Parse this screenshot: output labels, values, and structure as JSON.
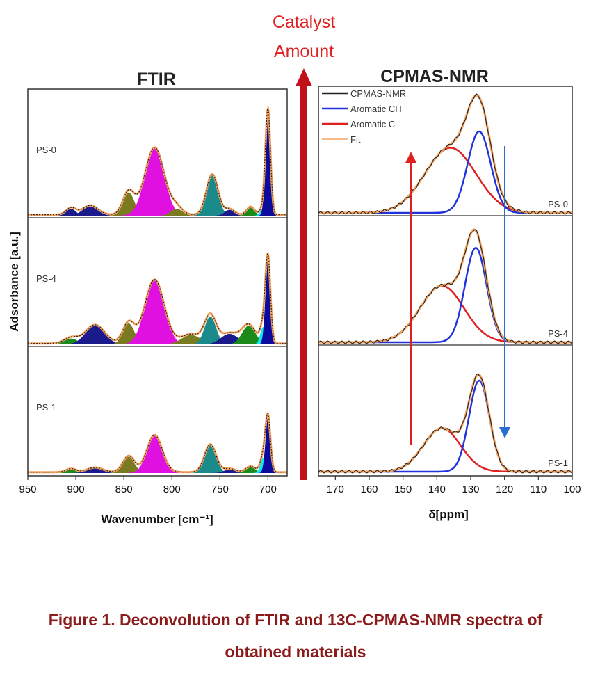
{
  "chart_data": [
    {
      "type": "line",
      "subtype": "stacked deconvoluted spectra",
      "title": "FTIR",
      "xlabel": "Wavenumber [cm⁻¹]",
      "ylabel": "Adsorbance [a.u.]",
      "xlim": [
        950,
        680
      ],
      "xticks": [
        950,
        900,
        850,
        800,
        750,
        700
      ],
      "samples": [
        {
          "name": "PS-0",
          "peaks": [
            {
              "center": 905,
              "width": 5,
              "height": 0.06,
              "color": "#1a1a8c"
            },
            {
              "center": 885,
              "width": 8,
              "height": 0.08,
              "color": "#1a1a8c"
            },
            {
              "center": 845,
              "width": 6,
              "height": 0.2,
              "color": "#7a7a20"
            },
            {
              "center": 818,
              "width": 10,
              "height": 0.58,
              "color": "#e010e0"
            },
            {
              "center": 795,
              "width": 6,
              "height": 0.06,
              "color": "#7a7a20"
            },
            {
              "center": 758,
              "width": 6,
              "height": 0.35,
              "color": "#1a8a8a"
            },
            {
              "center": 740,
              "width": 5,
              "height": 0.05,
              "color": "#1a1a8c"
            },
            {
              "center": 718,
              "width": 4,
              "height": 0.07,
              "color": "#1a8a1a"
            },
            {
              "center": 705,
              "width": 3,
              "height": 0.06,
              "color": "#10e8f0"
            },
            {
              "center": 700,
              "width": 2.6,
              "height": 0.9,
              "color": "#0a0a9c"
            }
          ]
        },
        {
          "name": "PS-4",
          "peaks": [
            {
              "center": 905,
              "width": 7,
              "height": 0.05,
              "color": "#1a8a1a"
            },
            {
              "center": 880,
              "width": 10,
              "height": 0.16,
              "color": "#1a1a8c"
            },
            {
              "center": 845,
              "width": 6,
              "height": 0.18,
              "color": "#7a7a20"
            },
            {
              "center": 818,
              "width": 10,
              "height": 0.55,
              "color": "#e010e0"
            },
            {
              "center": 780,
              "width": 10,
              "height": 0.08,
              "color": "#7a7a20"
            },
            {
              "center": 760,
              "width": 6,
              "height": 0.24,
              "color": "#1a8a8a"
            },
            {
              "center": 740,
              "width": 9,
              "height": 0.09,
              "color": "#1a1a8c"
            },
            {
              "center": 720,
              "width": 7,
              "height": 0.16,
              "color": "#1a8a1a"
            },
            {
              "center": 705,
              "width": 3,
              "height": 0.15,
              "color": "#10e8f0"
            },
            {
              "center": 700,
              "width": 2.6,
              "height": 0.73,
              "color": "#0a0a9c"
            }
          ]
        },
        {
          "name": "PS-1",
          "peaks": [
            {
              "center": 905,
              "width": 5,
              "height": 0.03,
              "color": "#1a8a1a"
            },
            {
              "center": 880,
              "width": 8,
              "height": 0.04,
              "color": "#1a1a8c"
            },
            {
              "center": 845,
              "width": 6,
              "height": 0.14,
              "color": "#7a7a20"
            },
            {
              "center": 818,
              "width": 8,
              "height": 0.32,
              "color": "#e010e0"
            },
            {
              "center": 760,
              "width": 6,
              "height": 0.24,
              "color": "#1a8a8a"
            },
            {
              "center": 740,
              "width": 6,
              "height": 0.03,
              "color": "#1a1a8c"
            },
            {
              "center": 718,
              "width": 5,
              "height": 0.05,
              "color": "#1a8a1a"
            },
            {
              "center": 705,
              "width": 3,
              "height": 0.13,
              "color": "#10e8f0"
            },
            {
              "center": 700,
              "width": 2.6,
              "height": 0.47,
              "color": "#0a0a9c"
            }
          ]
        }
      ]
    },
    {
      "type": "line",
      "subtype": "stacked deconvoluted spectra",
      "title": "CPMAS-NMR",
      "xlabel": "δ[ppm]",
      "xlim": [
        175,
        100
      ],
      "xticks": [
        170,
        160,
        150,
        140,
        130,
        120,
        110,
        100
      ],
      "legend": [
        {
          "label": "CPMAS-NMR",
          "color": "#222222"
        },
        {
          "label": "Aromatic CH",
          "color": "#2233dd"
        },
        {
          "label": "Aromatic C",
          "color": "#e02020"
        },
        {
          "label": "Fit",
          "color": "#f4a460"
        }
      ],
      "samples": [
        {
          "name": "PS-0",
          "aromatic_c": {
            "center": 136,
            "width": 7.5,
            "height": 0.6
          },
          "aromatic_ch": {
            "center": 127.5,
            "width": 3.4,
            "height": 0.75
          }
        },
        {
          "name": "PS-4",
          "aromatic_c": {
            "center": 138.5,
            "width": 6.5,
            "height": 0.52
          },
          "aromatic_ch": {
            "center": 128.5,
            "width": 3.2,
            "height": 0.87
          }
        },
        {
          "name": "PS-1",
          "aromatic_c": {
            "center": 138.5,
            "width": 5.5,
            "height": 0.4
          },
          "aromatic_ch": {
            "center": 127.5,
            "width": 3.0,
            "height": 0.84
          }
        }
      ]
    }
  ],
  "annotation": {
    "line1": "Catalyst",
    "line2": "Amount"
  },
  "caption": {
    "line1": "Figure 1. Deconvolution of FTIR and 13C-CPMAS-NMR spectra of",
    "line2": "obtained materials"
  }
}
